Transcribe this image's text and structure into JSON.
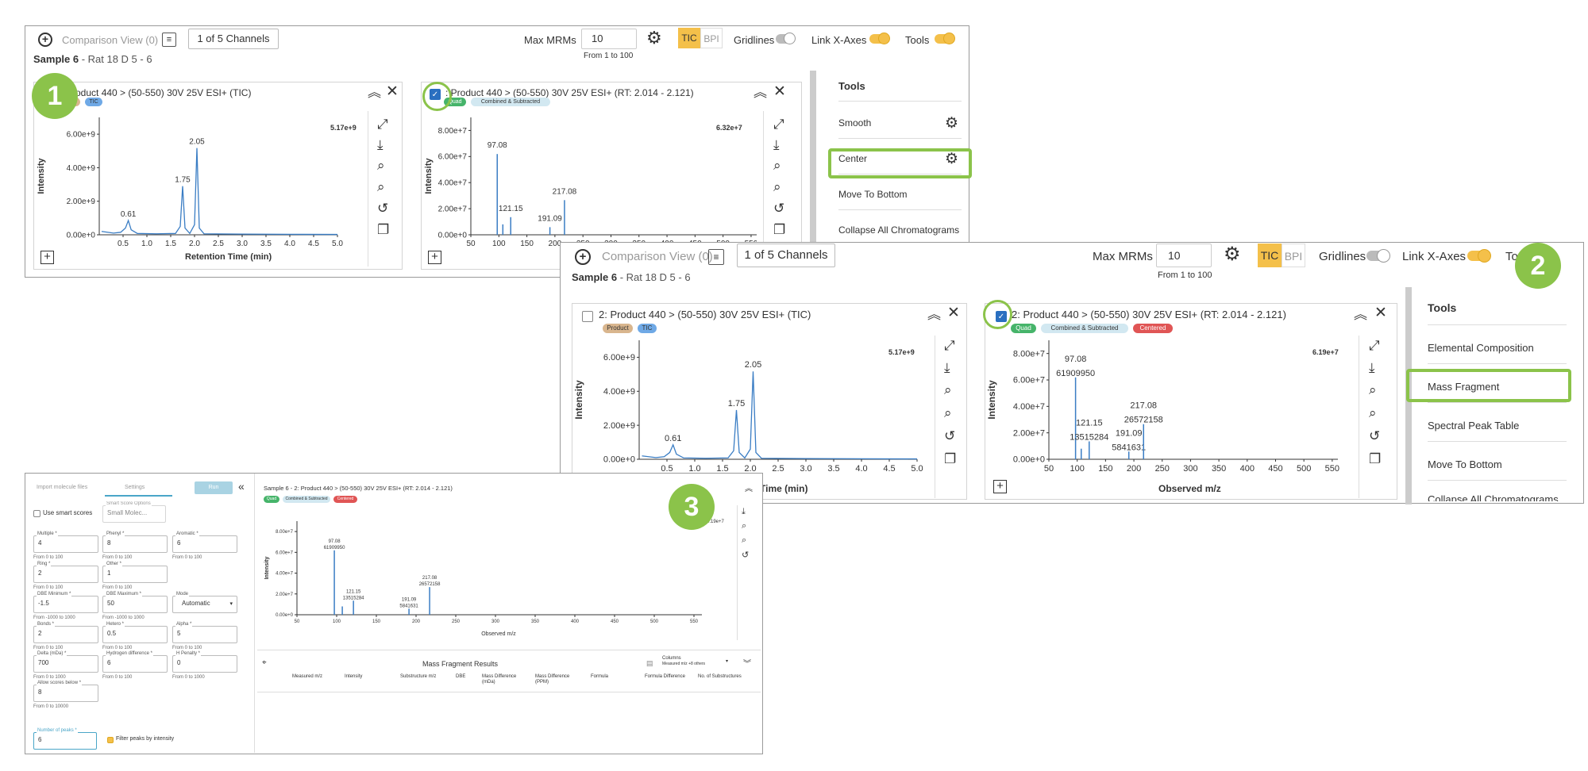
{
  "toolbar": {
    "comparison_view": "Comparison View (0)",
    "channels": "1 of 5 Channels",
    "sample_name": "Sample 6",
    "sample_sub": " - Rat 18 D 5 - 6",
    "max_mrms_label": "Max MRMs",
    "max_mrms_value": "10",
    "max_mrms_hint": "From 1 to 100",
    "tic": "TIC",
    "bpi": "BPI",
    "gridlines": "Gridlines",
    "link_x_axes": "Link X-Axes",
    "tools": "Tools",
    "tools_cut": "Tool"
  },
  "step_numbers": [
    "1",
    "2",
    "3"
  ],
  "panel1": {
    "card1": {
      "title": "Product 440 > (50-550) 30V 25V ESI+ (TIC)",
      "badges": [
        "Product",
        "TIC"
      ],
      "badges_cut": [
        "roduct",
        "TIC"
      ],
      "max_label": "5.17e+9",
      "xlabel": "Retention Time (min)",
      "ylabel": "Intensity"
    },
    "card2": {
      "title": ": Product 440 > (50-550) 30V 25V ESI+ (RT: 2.014 - 2.121)",
      "badges": [
        "Quad",
        "Combined & Subtracted"
      ],
      "max_label": "6.32e+7",
      "ylabel": "Intensity"
    },
    "tools": {
      "heading": "Tools",
      "items": [
        "Smooth",
        "Center",
        "Move To Bottom",
        "Collapse All Chromatograms"
      ]
    }
  },
  "panel2": {
    "card1": {
      "title": "2: Product 440 > (50-550) 30V 25V ESI+ (TIC)",
      "badges": [
        "Product",
        "TIC"
      ],
      "max_label": "5.17e+9",
      "xlabel_cut": "on Time (min)",
      "ylabel": "Intensity"
    },
    "card2": {
      "title": "2: Product 440 > (50-550) 30V 25V ESI+ (RT: 2.014 - 2.121)",
      "badges": [
        "Quad",
        "Combined & Subtracted",
        "Centered"
      ],
      "max_label": "6.19e+7",
      "xlabel": "Observed m/z",
      "ylabel": "Intensity"
    },
    "tools": {
      "heading": "Tools",
      "items": [
        "Elemental Composition",
        "Mass Fragment",
        "Spectral Peak Table",
        "Move To Bottom",
        "Collapse All Chromatograms"
      ]
    }
  },
  "panel3": {
    "tabs": [
      "Import molecule files",
      "Settings"
    ],
    "run_button": "Run",
    "use_smart_scores": "Use smart scores",
    "smart_score_label": "Smart Score Options",
    "smart_score_value": "Small Molec...",
    "fields": [
      {
        "label": "Multiple *",
        "value": "4",
        "hint": "From 0 to 100"
      },
      {
        "label": "Phenyl *",
        "value": "8",
        "hint": "From 0 to 100"
      },
      {
        "label": "Aromatic *",
        "value": "6",
        "hint": "From 0 to 100"
      },
      {
        "label": "Ring *",
        "value": "2",
        "hint": "From 0 to 100"
      },
      {
        "label": "Other *",
        "value": "1",
        "hint": "From 0 to 100"
      },
      {
        "label": "DBE Minimum *",
        "value": "-1.5",
        "hint": "From -1000 to 1000"
      },
      {
        "label": "DBE Maximum *",
        "value": "50",
        "hint": "From -1000 to 1000"
      },
      {
        "label": "Mode",
        "value": "Automatic",
        "hint": ""
      },
      {
        "label": "Bonds *",
        "value": "2",
        "hint": "From 0 to 100"
      },
      {
        "label": "Hetero *",
        "value": "0.5",
        "hint": "From 0 to 100"
      },
      {
        "label": "Alpha *",
        "value": "5",
        "hint": "From 0 to 100"
      },
      {
        "label": "Delta (mDa) *",
        "value": "700",
        "hint": "From 0 to 1000"
      },
      {
        "label": "Hydrogen difference *",
        "value": "6",
        "hint": "From 0 to 100"
      },
      {
        "label": "H Penalty *",
        "value": "0",
        "hint": "From 0 to 1000"
      },
      {
        "label": "Allow scores below *",
        "value": "8",
        "hint": "From 0 to 10000"
      },
      {
        "label": "Number of peaks *",
        "value": "6",
        "hint": ""
      }
    ],
    "filter_peaks": "Filter peaks by intensity",
    "spectrum_title": "Sample 6 - 2: Product 440 > (50-550) 30V 25V ESI+ (RT: 2.014 - 2.121)",
    "badges": [
      "Quad",
      "Combined & Subtracted",
      "Centered"
    ],
    "max_label": "6.19e+7",
    "xlabel": "Observed m/z",
    "ylabel": "Intensity",
    "results_title": "Mass Fragment Results",
    "columns_label": "Columns",
    "columns_sub": "Measured m/z +8 others",
    "result_columns": [
      "Measured m/z",
      "Intensity",
      "Substructure m/z",
      "DBE",
      "Mass Difference (mDa)",
      "Mass Difference (PPM)",
      "Formula",
      "Formula Difference",
      "No. of Substructures"
    ]
  },
  "chart_data": [
    {
      "type": "line",
      "title": "Product 440 > (50-550) 30V 25V ESI+ (TIC)",
      "xlabel": "Retention Time (min)",
      "ylabel": "Intensity",
      "xlim": [
        0,
        5.0
      ],
      "ylim": [
        0,
        7000000000
      ],
      "xticks": [
        "0.5",
        "1.0",
        "1.5",
        "2.0",
        "2.5",
        "3.0",
        "3.5",
        "4.0",
        "4.5",
        "5.0"
      ],
      "yticks": [
        "0.00e+0",
        "2.00e+9",
        "4.00e+9",
        "6.00e+9"
      ],
      "peak_labels": [
        {
          "x": 0.61,
          "label": "0.61"
        },
        {
          "x": 1.75,
          "label": "1.75"
        },
        {
          "x": 2.05,
          "label": "2.05"
        }
      ],
      "series": [
        {
          "x": [
            0.05,
            0.3,
            0.45,
            0.55,
            0.61,
            0.67,
            0.8,
            1.2,
            1.6,
            1.7,
            1.75,
            1.8,
            1.9,
            2.0,
            2.05,
            2.1,
            2.2,
            3.0,
            4.0,
            5.0
          ],
          "values": [
            200000000,
            100000000,
            150000000,
            400000000,
            850000000,
            300000000,
            80000000,
            60000000,
            80000000,
            500000000,
            2900000000,
            400000000,
            80000000,
            600000000,
            5170000000,
            400000000,
            60000000,
            40000000,
            30000000,
            20000000
          ]
        }
      ]
    },
    {
      "type": "bar",
      "title": "2: Product 440 > (50-550) 30V 25V ESI+ (RT: 2.014 - 2.121)",
      "xlabel": "Observed m/z",
      "ylabel": "Intensity",
      "xlim": [
        50,
        560
      ],
      "ylim": [
        0,
        90000000
      ],
      "xticks": [
        "50",
        "100",
        "150",
        "200",
        "250",
        "300",
        "350",
        "400",
        "450",
        "500",
        "550"
      ],
      "yticks": [
        "0.00e+0",
        "2.00e+7",
        "4.00e+7",
        "6.00e+7",
        "8.00e+7"
      ],
      "peaks": [
        {
          "x": 97.08,
          "y": 61909950,
          "label": "97.08",
          "sublabel": "61909950"
        },
        {
          "x": 107.1,
          "y": 8000000,
          "label": "",
          "sublabel": ""
        },
        {
          "x": 121.15,
          "y": 13515284,
          "label": "121.15",
          "sublabel": "13515284"
        },
        {
          "x": 191.09,
          "y": 5841631,
          "label": "191.09",
          "sublabel": "5841631"
        },
        {
          "x": 217.08,
          "y": 26572158,
          "label": "217.08",
          "sublabel": "26572158"
        }
      ]
    }
  ]
}
